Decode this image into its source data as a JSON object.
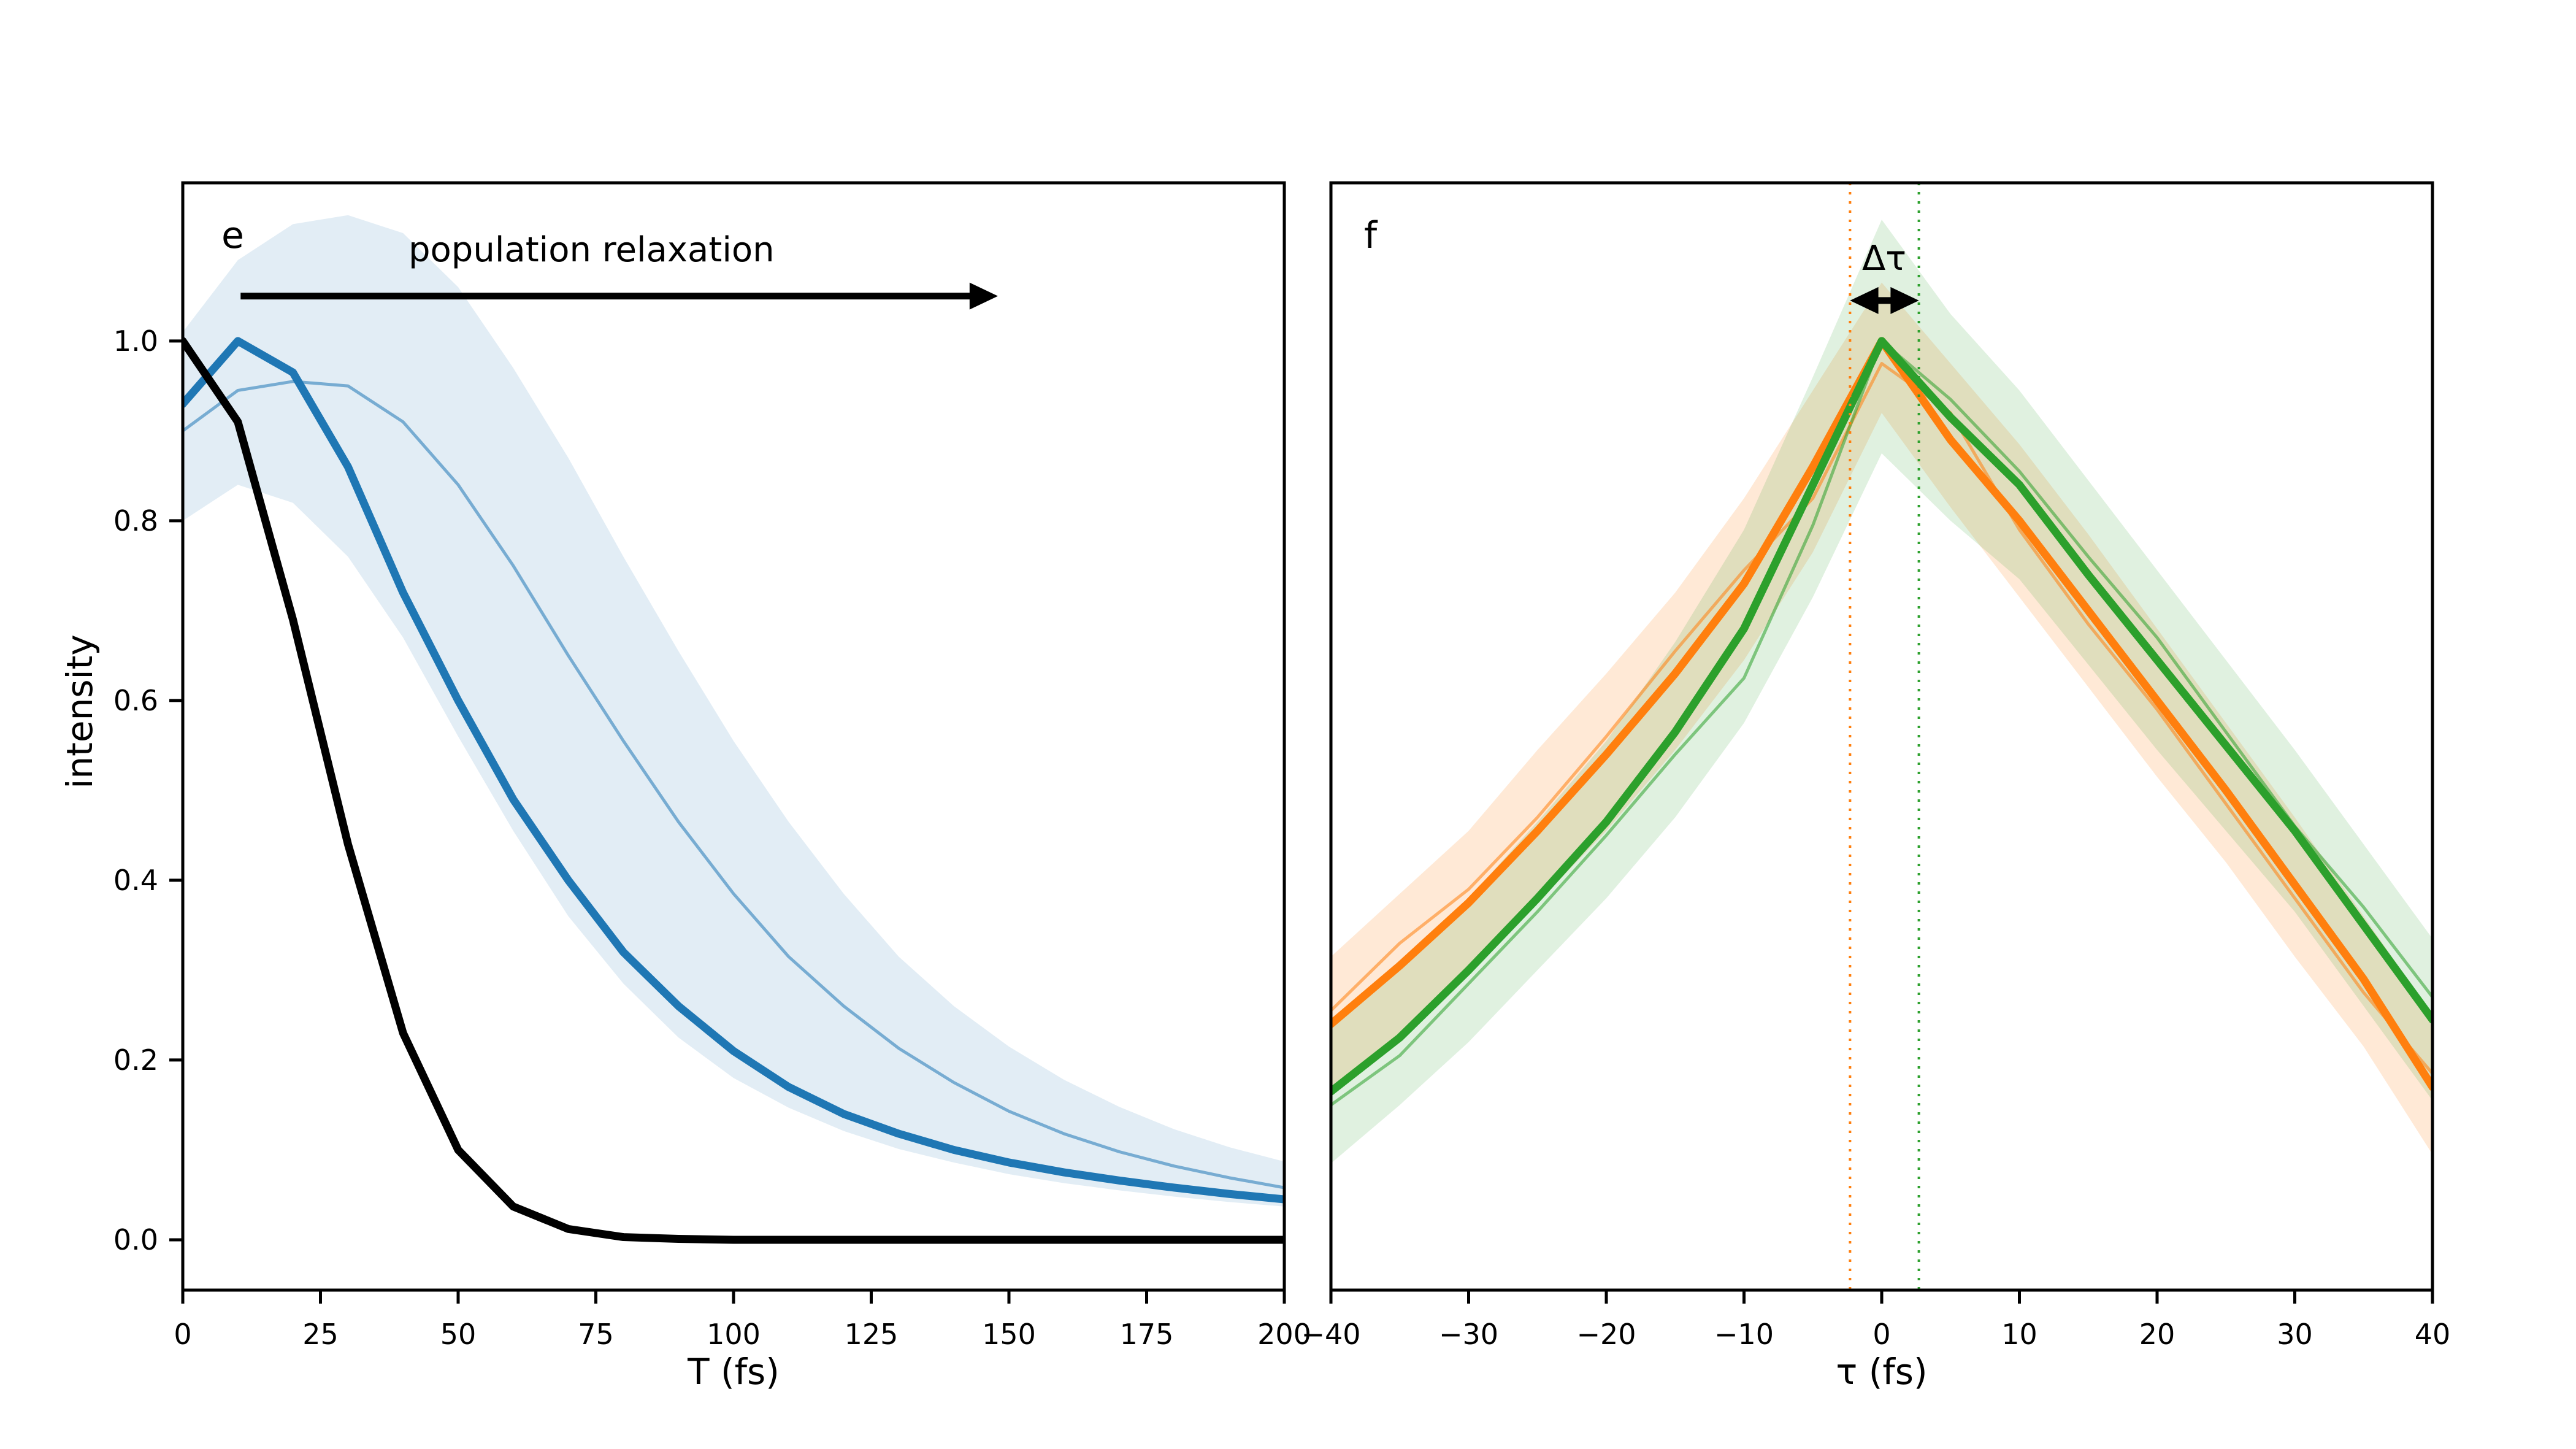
{
  "figure": {
    "background": "#ffffff",
    "grid": false,
    "legend": "none"
  },
  "chart_data": [
    {
      "id": "e",
      "type": "line",
      "panel_label": "e",
      "title": "",
      "xlabel": "T (fs)",
      "ylabel": "intensity",
      "xlim": [
        0,
        200
      ],
      "ylim": [
        -0.056,
        1.176
      ],
      "xtick_positions": [
        0,
        25,
        50,
        75,
        100,
        125,
        150,
        175,
        200
      ],
      "xtick_labels": [
        "0",
        "25",
        "50",
        "75",
        "100",
        "125",
        "150",
        "175",
        "200"
      ],
      "ytick_positions": [
        0.0,
        0.2,
        0.4,
        0.6,
        0.8,
        1.0
      ],
      "ytick_labels": [
        "0.0",
        "0.2",
        "0.4",
        "0.6",
        "0.8",
        "1.0"
      ],
      "x": [
        0,
        10,
        20,
        30,
        40,
        50,
        60,
        70,
        80,
        90,
        100,
        110,
        120,
        130,
        140,
        150,
        160,
        170,
        180,
        190,
        200
      ],
      "series": [
        {
          "name": "blue-thin-line",
          "color": "#1f77b4",
          "opacity": 0.55,
          "width": 5,
          "values": [
            0.9,
            0.945,
            0.955,
            0.95,
            0.91,
            0.84,
            0.75,
            0.65,
            0.555,
            0.465,
            0.385,
            0.315,
            0.26,
            0.213,
            0.175,
            0.143,
            0.118,
            0.098,
            0.082,
            0.069,
            0.058
          ]
        },
        {
          "name": "blue-thick-line",
          "color": "#1f77b4",
          "opacity": 1,
          "width": 13,
          "values": [
            0.93,
            1.0,
            0.965,
            0.86,
            0.72,
            0.6,
            0.49,
            0.4,
            0.32,
            0.26,
            0.21,
            0.17,
            0.14,
            0.118,
            0.1,
            0.086,
            0.075,
            0.066,
            0.058,
            0.051,
            0.045
          ]
        },
        {
          "name": "black-line",
          "color": "#000000",
          "opacity": 1,
          "width": 13,
          "values": [
            1.0,
            0.91,
            0.69,
            0.44,
            0.23,
            0.1,
            0.037,
            0.012,
            0.003,
            0.001,
            0,
            0,
            0,
            0,
            0,
            0,
            0,
            0,
            0,
            0,
            0
          ]
        }
      ],
      "bands": [
        {
          "name": "blue-shaded-band",
          "color": "#1f77b4",
          "opacity": 0.13,
          "upper": [
            1.01,
            1.09,
            1.13,
            1.14,
            1.12,
            1.06,
            0.97,
            0.87,
            0.76,
            0.655,
            0.555,
            0.465,
            0.385,
            0.315,
            0.26,
            0.215,
            0.178,
            0.148,
            0.123,
            0.103,
            0.087
          ],
          "lower": [
            0.8,
            0.84,
            0.82,
            0.76,
            0.67,
            0.56,
            0.455,
            0.36,
            0.285,
            0.225,
            0.18,
            0.147,
            0.121,
            0.101,
            0.086,
            0.073,
            0.063,
            0.055,
            0.048,
            0.042,
            0.037
          ]
        }
      ],
      "vlines": [],
      "annotations": [
        {
          "kind": "text",
          "text": "population relaxation"
        },
        {
          "kind": "arrow",
          "x1": 10.5,
          "x2": 148,
          "y": 1.05,
          "heads": "end",
          "color": "#000000",
          "width": 11
        }
      ]
    },
    {
      "id": "f",
      "type": "line",
      "panel_label": "f",
      "title": "",
      "xlabel": "τ (fs)",
      "ylabel": "",
      "xlim": [
        -40,
        40
      ],
      "ylim": [
        -0.056,
        1.176
      ],
      "xtick_positions": [
        -40,
        -30,
        -20,
        -10,
        0,
        10,
        20,
        30,
        40
      ],
      "xtick_labels": [
        "−40",
        "−30",
        "−20",
        "−10",
        "0",
        "10",
        "20",
        "30",
        "40"
      ],
      "ytick_positions": [],
      "ytick_labels": [],
      "x": [
        -40,
        -35,
        -30,
        -25,
        -20,
        -15,
        -10,
        -5,
        0,
        5,
        10,
        15,
        20,
        25,
        30,
        35,
        40
      ],
      "series": [
        {
          "name": "orange-thin-line",
          "color": "#ff7f0e",
          "opacity": 0.55,
          "width": 5,
          "values": [
            0.255,
            0.33,
            0.39,
            0.47,
            0.56,
            0.655,
            0.745,
            0.825,
            0.975,
            0.92,
            0.79,
            0.685,
            0.59,
            0.485,
            0.38,
            0.275,
            0.185
          ]
        },
        {
          "name": "green-thin-line",
          "color": "#2ca02c",
          "opacity": 0.55,
          "width": 5,
          "values": [
            0.15,
            0.205,
            0.285,
            0.365,
            0.45,
            0.54,
            0.625,
            0.795,
            1.0,
            0.935,
            0.855,
            0.76,
            0.67,
            0.565,
            0.46,
            0.37,
            0.27
          ]
        },
        {
          "name": "orange-thick-line",
          "color": "#ff7f0e",
          "opacity": 1,
          "width": 13,
          "values": [
            0.24,
            0.305,
            0.375,
            0.455,
            0.54,
            0.63,
            0.73,
            0.86,
            1.0,
            0.89,
            0.8,
            0.7,
            0.6,
            0.5,
            0.395,
            0.29,
            0.17
          ]
        },
        {
          "name": "green-thick-line",
          "color": "#2ca02c",
          "opacity": 1,
          "width": 13,
          "values": [
            0.165,
            0.225,
            0.3,
            0.38,
            0.465,
            0.565,
            0.68,
            0.84,
            1.0,
            0.915,
            0.84,
            0.74,
            0.645,
            0.55,
            0.455,
            0.35,
            0.245
          ]
        }
      ],
      "bands": [
        {
          "name": "orange-shaded-band",
          "color": "#ff7f0e",
          "opacity": 0.17,
          "upper": [
            0.315,
            0.385,
            0.455,
            0.545,
            0.63,
            0.72,
            0.825,
            0.945,
            1.065,
            0.975,
            0.885,
            0.785,
            0.68,
            0.575,
            0.47,
            0.36,
            0.25
          ],
          "lower": [
            0.165,
            0.23,
            0.3,
            0.375,
            0.455,
            0.545,
            0.645,
            0.765,
            0.92,
            0.815,
            0.715,
            0.615,
            0.515,
            0.42,
            0.315,
            0.215,
            0.095
          ]
        },
        {
          "name": "green-shaded-band",
          "color": "#2ca02c",
          "opacity": 0.15,
          "upper": [
            0.245,
            0.305,
            0.38,
            0.465,
            0.555,
            0.665,
            0.79,
            0.96,
            1.135,
            1.03,
            0.945,
            0.845,
            0.745,
            0.645,
            0.545,
            0.44,
            0.335
          ],
          "lower": [
            0.085,
            0.15,
            0.22,
            0.3,
            0.38,
            0.47,
            0.575,
            0.715,
            0.875,
            0.8,
            0.735,
            0.64,
            0.545,
            0.455,
            0.365,
            0.26,
            0.155
          ]
        }
      ],
      "vlines": [
        {
          "name": "orange-center-dashed",
          "x": -2.3,
          "color": "#ff7f0e"
        },
        {
          "name": "green-center-dashed",
          "x": 2.7,
          "color": "#2ca02c"
        }
      ],
      "annotations": [
        {
          "kind": "text",
          "text": "Δτ"
        },
        {
          "kind": "arrow",
          "x1": -2.3,
          "x2": 2.7,
          "y": 1.045,
          "heads": "both",
          "color": "#000000",
          "width": 11
        }
      ]
    }
  ]
}
